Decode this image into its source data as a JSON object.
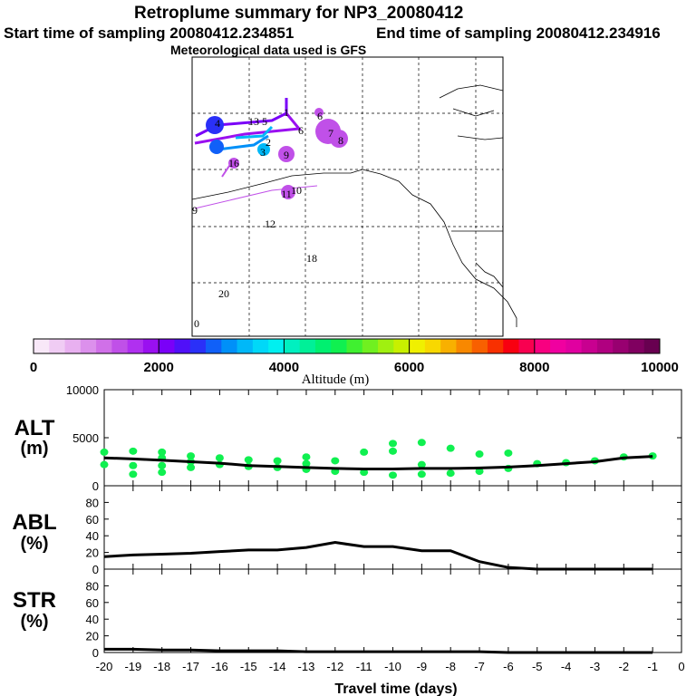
{
  "header": {
    "title": "Retroplume summary for NP3_20080412",
    "start_label": "Start time of sampling 20080412.234851",
    "end_label": "End time of sampling 20080412.234916",
    "met_label": "Meteorological data used is GFS"
  },
  "colorbar": {
    "title": "Altitude (m)",
    "tick_labels": [
      "0",
      "2000",
      "4000",
      "6000",
      "8000",
      "10000"
    ],
    "range": [
      0,
      10000
    ],
    "colors": [
      "#f8e8f8",
      "#f0ccf4",
      "#e8b0f0",
      "#dc90ec",
      "#d070e8",
      "#c050e8",
      "#b030f0",
      "#9a10f0",
      "#7a00f8",
      "#5010f8",
      "#2a30f8",
      "#1060f8",
      "#0090f8",
      "#00b8f8",
      "#00d8f8",
      "#00f0f0",
      "#00f0c0",
      "#00f098",
      "#00f070",
      "#10f050",
      "#40f030",
      "#70f020",
      "#a0f010",
      "#c8f000",
      "#f0f000",
      "#f8d800",
      "#f8b000",
      "#f88800",
      "#f86000",
      "#f83000",
      "#f80010",
      "#f80050",
      "#f80080",
      "#f000a0",
      "#e000a0",
      "#c80090",
      "#b00080",
      "#980070",
      "#800060",
      "#680050"
    ]
  },
  "map": {
    "day_markers": [
      {
        "label": "1",
        "color": "#0090f8"
      },
      {
        "label": "2",
        "color": "#0090f8"
      },
      {
        "label": "3",
        "color": "#0090f8"
      },
      {
        "label": "4",
        "color": "#2a30f8"
      },
      {
        "label": "5",
        "color": "#9a10f0"
      },
      {
        "label": "6",
        "color": "#c050e8"
      },
      {
        "label": "6",
        "color": "#9a10f0"
      },
      {
        "label": "7",
        "color": "#c050e8"
      },
      {
        "label": "8",
        "color": "#c050e8"
      },
      {
        "label": "9",
        "color": "#c050e8"
      },
      {
        "label": "10",
        "color": "#c050e8"
      },
      {
        "label": "11",
        "color": "#c050e8"
      },
      {
        "label": "12",
        "color": "#c050e8"
      },
      {
        "label": "13",
        "color": "#c050e8"
      },
      {
        "label": "16",
        "color": "#c050e8"
      },
      {
        "label": "18",
        "color": "#d070e8"
      },
      {
        "label": "20",
        "color": "#d070e8"
      },
      {
        "label": "0",
        "color": "#c050e8"
      },
      {
        "label": "9",
        "color": "#e8b0f0"
      }
    ]
  },
  "chart_data": [
    {
      "type": "line",
      "panel": "ALT",
      "ylabel": "ALT (m)",
      "x": [
        -20,
        -19,
        -18,
        -17,
        -16,
        -15,
        -14,
        -13,
        -12,
        -11,
        -10,
        -9,
        -8,
        -7,
        -6,
        -5,
        -4,
        -3,
        -2,
        -1
      ],
      "ylim": [
        0,
        10000
      ],
      "yticks": [
        "10000",
        "5000",
        "0"
      ],
      "series": [
        {
          "name": "mean altitude",
          "values": [
            2900,
            2800,
            2650,
            2500,
            2350,
            2100,
            2000,
            1900,
            1800,
            1750,
            1750,
            1800,
            1800,
            1850,
            1950,
            2100,
            2300,
            2500,
            2900,
            3050
          ]
        }
      ],
      "scatter": [
        {
          "x": -20,
          "y": 3500
        },
        {
          "x": -20,
          "y": 2200
        },
        {
          "x": -19,
          "y": 3600
        },
        {
          "x": -19,
          "y": 2100
        },
        {
          "x": -19,
          "y": 1200
        },
        {
          "x": -18,
          "y": 3500
        },
        {
          "x": -18,
          "y": 2900
        },
        {
          "x": -18,
          "y": 2100
        },
        {
          "x": -18,
          "y": 1400
        },
        {
          "x": -17,
          "y": 3100
        },
        {
          "x": -17,
          "y": 2500
        },
        {
          "x": -17,
          "y": 1900
        },
        {
          "x": -16,
          "y": 2900
        },
        {
          "x": -16,
          "y": 2200
        },
        {
          "x": -15,
          "y": 2700
        },
        {
          "x": -15,
          "y": 2000
        },
        {
          "x": -14,
          "y": 2600
        },
        {
          "x": -14,
          "y": 1900
        },
        {
          "x": -13,
          "y": 3000
        },
        {
          "x": -13,
          "y": 2300
        },
        {
          "x": -13,
          "y": 1700
        },
        {
          "x": -12,
          "y": 2600
        },
        {
          "x": -12,
          "y": 1500
        },
        {
          "x": -11,
          "y": 3500
        },
        {
          "x": -11,
          "y": 1400
        },
        {
          "x": -10,
          "y": 4400
        },
        {
          "x": -10,
          "y": 3600
        },
        {
          "x": -10,
          "y": 1100
        },
        {
          "x": -9,
          "y": 4500
        },
        {
          "x": -9,
          "y": 2200
        },
        {
          "x": -9,
          "y": 1200
        },
        {
          "x": -8,
          "y": 3900
        },
        {
          "x": -8,
          "y": 1300
        },
        {
          "x": -7,
          "y": 3300
        },
        {
          "x": -7,
          "y": 1500
        },
        {
          "x": -6,
          "y": 3400
        },
        {
          "x": -6,
          "y": 1800
        },
        {
          "x": -5,
          "y": 2300
        },
        {
          "x": -4,
          "y": 2400
        },
        {
          "x": -3,
          "y": 2600
        },
        {
          "x": -2,
          "y": 3000
        },
        {
          "x": -1,
          "y": 3100
        }
      ]
    },
    {
      "type": "line",
      "panel": "ABL",
      "ylabel": "ABL (%)",
      "x": [
        -20,
        -19,
        -18,
        -17,
        -16,
        -15,
        -14,
        -13,
        -12,
        -11,
        -10,
        -9,
        -8,
        -7,
        -6,
        -5,
        -4,
        -3,
        -2,
        -1
      ],
      "ylim": [
        0,
        100
      ],
      "yticks": [
        "80",
        "60",
        "40",
        "20",
        "0"
      ],
      "series": [
        {
          "name": "ABL fraction",
          "values": [
            15,
            17,
            18,
            19,
            21,
            23,
            23,
            26,
            32,
            27,
            27,
            22,
            22,
            9,
            2,
            0,
            0,
            0,
            0,
            0
          ]
        }
      ]
    },
    {
      "type": "line",
      "panel": "STR",
      "ylabel": "STR (%)",
      "x": [
        -20,
        -19,
        -18,
        -17,
        -16,
        -15,
        -14,
        -13,
        -12,
        -11,
        -10,
        -9,
        -8,
        -7,
        -6,
        -5,
        -4,
        -3,
        -2,
        -1
      ],
      "ylim": [
        0,
        100
      ],
      "yticks": [
        "80",
        "60",
        "40",
        "20",
        "0"
      ],
      "series": [
        {
          "name": "stratospheric fraction",
          "values": [
            4,
            4,
            3,
            3,
            2,
            2,
            2,
            1,
            1,
            1,
            1,
            1,
            1,
            1,
            0,
            0,
            0,
            0,
            0,
            0
          ]
        }
      ],
      "xlabel": "Travel time (days)",
      "xticks": [
        "-20",
        "-19",
        "-18",
        "-17",
        "-16",
        "-15",
        "-14",
        "-13",
        "-12",
        "-11",
        "-10",
        "-9",
        "-8",
        "-7",
        "-6",
        "-5",
        "-4",
        "-3",
        "-2",
        "-1",
        "0"
      ]
    }
  ],
  "panel_labels": {
    "alt": [
      "ALT",
      "(m)"
    ],
    "abl": [
      "ABL",
      "(%)"
    ],
    "str": [
      "STR",
      "(%)"
    ]
  }
}
